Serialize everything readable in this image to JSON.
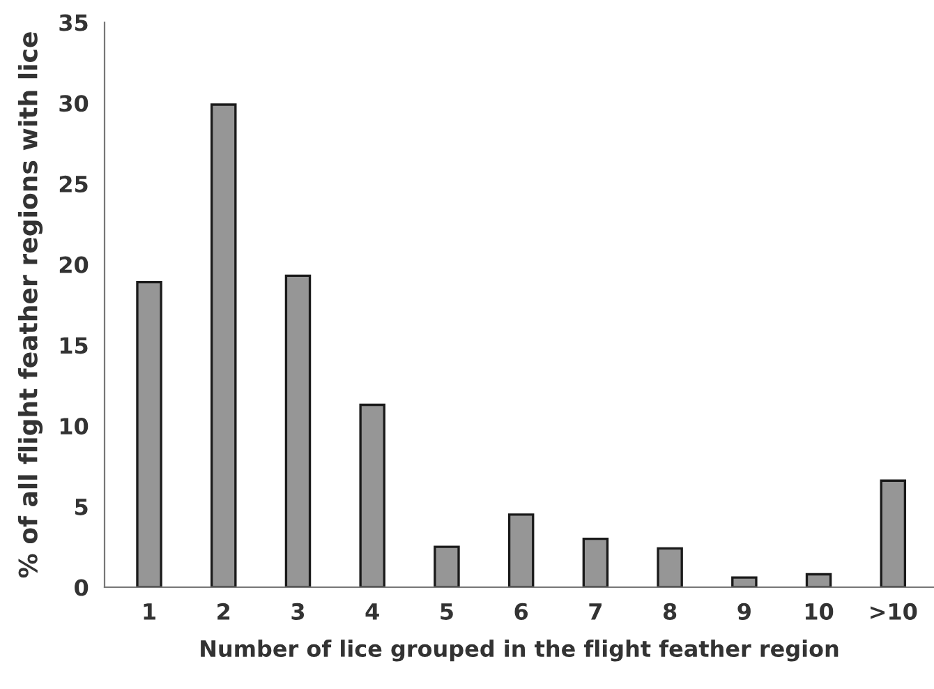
{
  "chart_data": {
    "type": "bar",
    "xlabel": "Number of lice grouped in the flight feather region",
    "ylabel": "% of all flight feather regions with lice",
    "categories": [
      "1",
      "2",
      "3",
      "4",
      "5",
      "6",
      "7",
      "8",
      "9",
      "10",
      ">10"
    ],
    "values": [
      18.9,
      29.9,
      19.3,
      11.3,
      2.5,
      4.5,
      3.0,
      2.4,
      0.6,
      0.8,
      6.6
    ],
    "color": "#969696",
    "ylim": [
      0,
      35
    ],
    "yticks": [
      0,
      5,
      10,
      15,
      20,
      25,
      30,
      35
    ],
    "grid": false,
    "legend": false
  }
}
